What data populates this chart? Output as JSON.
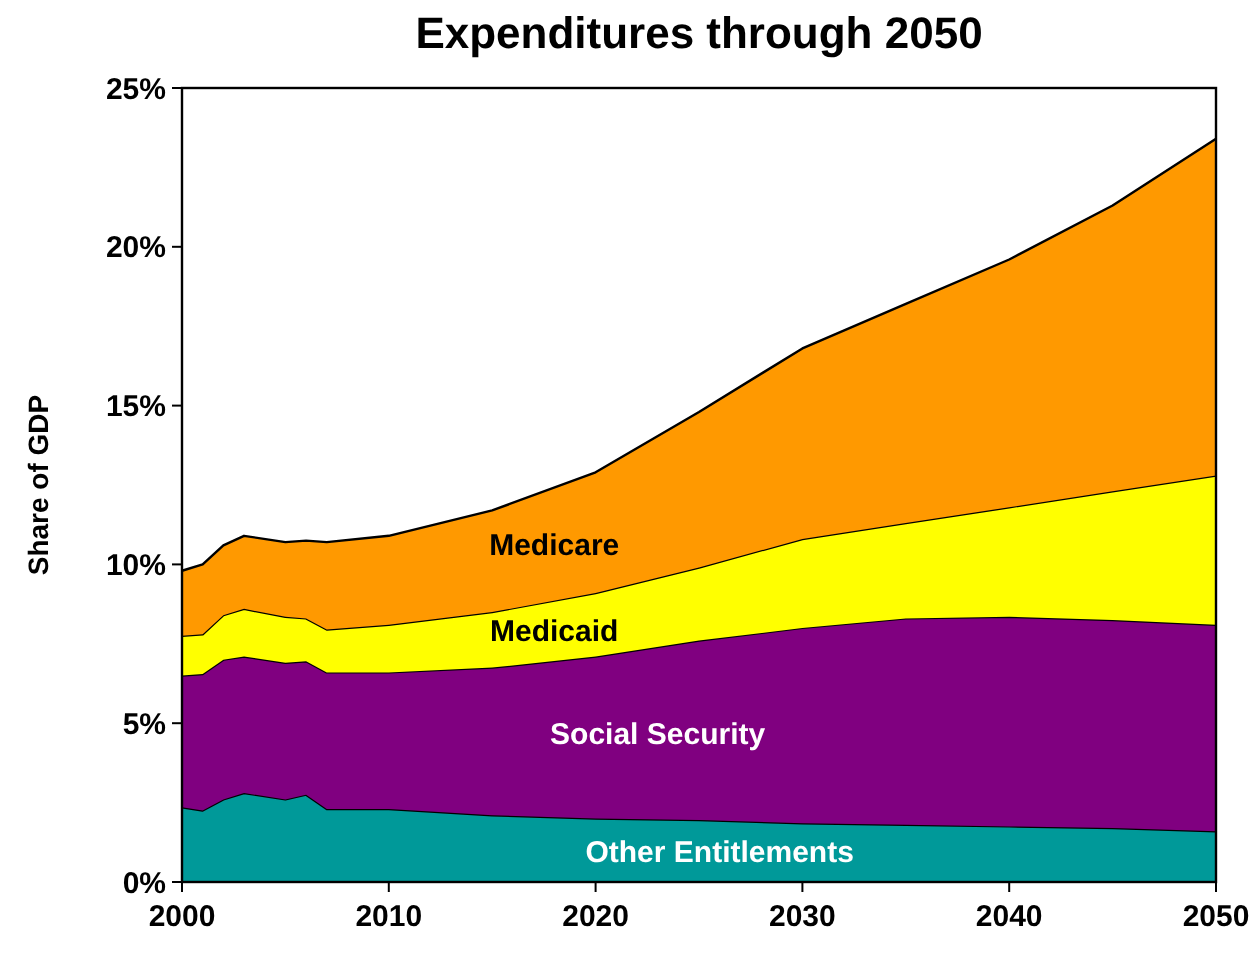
{
  "chart_data": {
    "type": "area",
    "stacked": true,
    "title": "Expenditures through 2050",
    "ylabel": "Share of GDP",
    "x": [
      2000,
      2001,
      2002,
      2003,
      2005,
      2006,
      2007,
      2010,
      2015,
      2020,
      2025,
      2030,
      2035,
      2040,
      2045,
      2050
    ],
    "xlim": [
      2000,
      2050
    ],
    "xticks": [
      2000,
      2010,
      2020,
      2030,
      2040,
      2050
    ],
    "ylim": [
      0,
      25
    ],
    "yticks": [
      {
        "value": 0,
        "label": "0%"
      },
      {
        "value": 5,
        "label": "5%"
      },
      {
        "value": 10,
        "label": "10%"
      },
      {
        "value": 15,
        "label": "15%"
      },
      {
        "value": 20,
        "label": "20%"
      },
      {
        "value": 25,
        "label": "25%"
      }
    ],
    "grid": false,
    "series": [
      {
        "name": "Other Entitlements",
        "color": "#009999",
        "values": [
          2.35,
          2.25,
          2.6,
          2.8,
          2.6,
          2.75,
          2.3,
          2.3,
          2.1,
          2.0,
          1.95,
          1.85,
          1.8,
          1.75,
          1.7,
          1.6
        ]
      },
      {
        "name": "Social Security",
        "color": "#800080",
        "values": [
          4.15,
          4.3,
          4.4,
          4.3,
          4.3,
          4.2,
          4.3,
          4.3,
          4.65,
          5.1,
          5.65,
          6.15,
          6.5,
          6.6,
          6.55,
          6.5
        ]
      },
      {
        "name": "Medicaid",
        "color": "#ffff00",
        "values": [
          1.25,
          1.25,
          1.4,
          1.5,
          1.45,
          1.35,
          1.35,
          1.5,
          1.75,
          2.0,
          2.3,
          2.8,
          3.0,
          3.45,
          4.05,
          4.7
        ]
      },
      {
        "name": "Medicare",
        "color": "#ff9900",
        "values": [
          2.05,
          2.2,
          2.2,
          2.3,
          2.35,
          2.45,
          2.75,
          2.8,
          3.2,
          3.8,
          4.9,
          6.0,
          6.9,
          7.8,
          9.0,
          10.6
        ]
      }
    ]
  }
}
